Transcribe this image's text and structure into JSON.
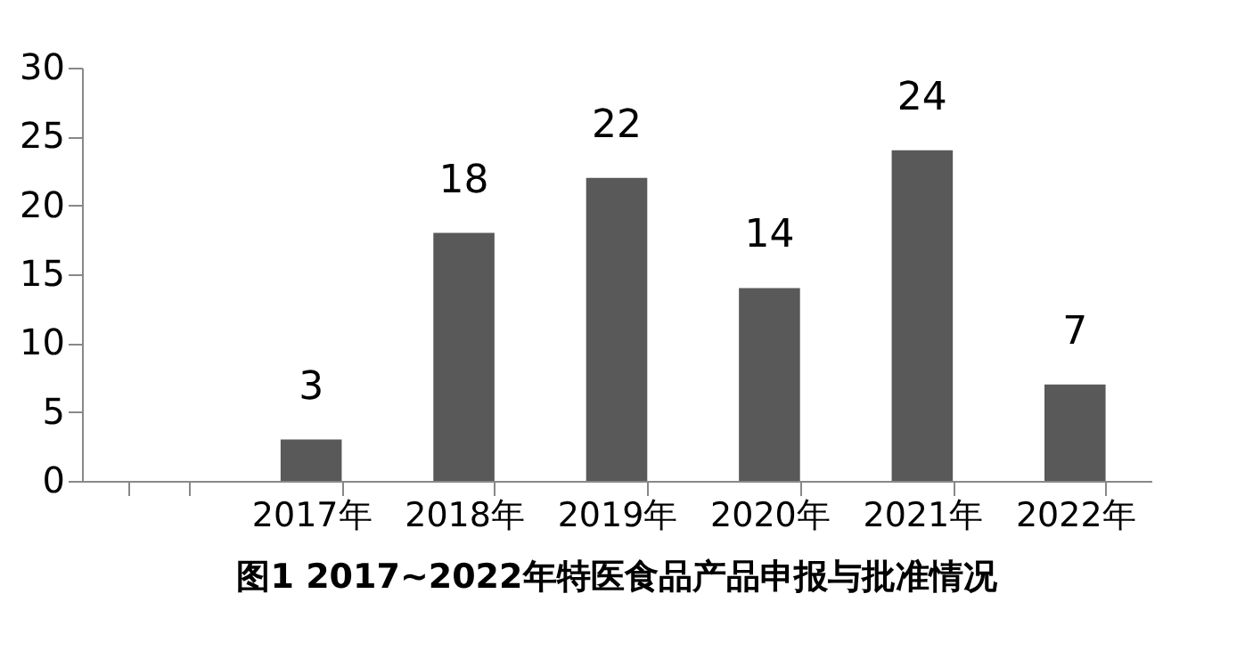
{
  "chart_data": {
    "type": "bar",
    "title": "图1  2017~2022年特医食品产品申报与批准情况",
    "categories": [
      null,
      "2017年",
      "2018年",
      "2019年",
      "2020年",
      "2021年",
      "2022年"
    ],
    "values": [
      null,
      3,
      18,
      22,
      14,
      24,
      7
    ],
    "color": "#595959",
    "ylim": [
      0,
      30
    ],
    "yticks": [
      0,
      5,
      10,
      15,
      20,
      25,
      30
    ],
    "grid": false,
    "data_labels": true
  }
}
